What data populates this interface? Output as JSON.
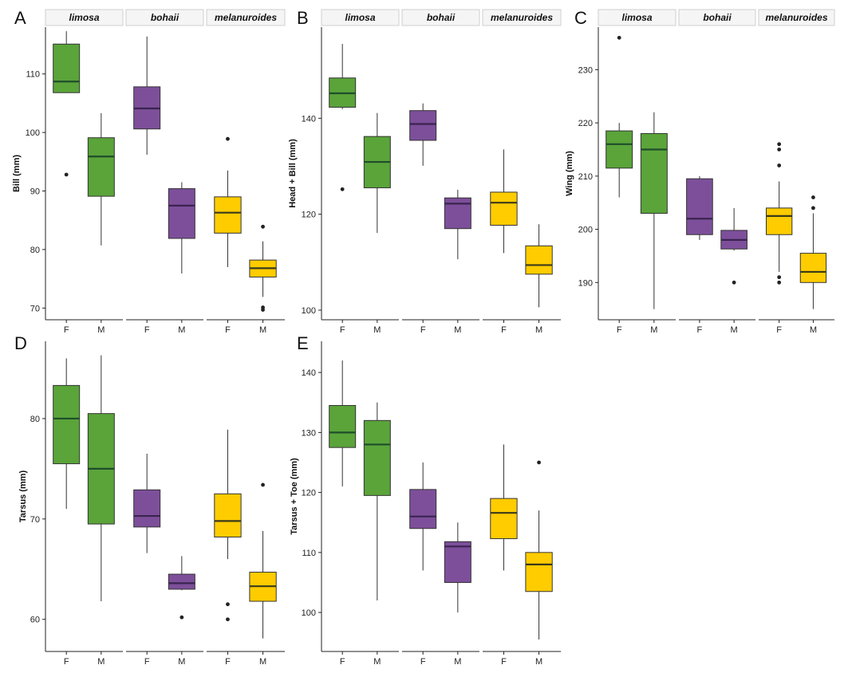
{
  "colors": {
    "limosa": "#5aa43a",
    "bohaii": "#7d4f9a",
    "melanuroides": "#ffcc00",
    "median_dark": "#1f4d2a",
    "median_purple": "#3a2450",
    "median_yellow": "#3a3a1a",
    "strip_fill": "#f5f5f5",
    "axis": "#222222"
  },
  "chart_data": [
    {
      "panel": "A",
      "type": "box",
      "ylabel": "Bill (mm)",
      "ylim": [
        68,
        118
      ],
      "yticks": [
        70,
        80,
        90,
        100,
        110
      ],
      "facets": [
        "limosa",
        "bohaii",
        "melanuroides"
      ],
      "categories": [
        "F",
        "M"
      ],
      "boxes": [
        {
          "facet": "limosa",
          "sex": "F",
          "q1": 106.8,
          "median": 108.7,
          "q3": 115.1,
          "whislo": 106.8,
          "whishi": 117.3,
          "outliers": [
            92.8
          ]
        },
        {
          "facet": "limosa",
          "sex": "M",
          "q1": 89.1,
          "median": 95.9,
          "q3": 99.1,
          "whislo": 80.7,
          "whishi": 103.3,
          "outliers": []
        },
        {
          "facet": "bohaii",
          "sex": "F",
          "q1": 100.6,
          "median": 104.1,
          "q3": 107.8,
          "whislo": 96.2,
          "whishi": 116.4,
          "outliers": []
        },
        {
          "facet": "bohaii",
          "sex": "M",
          "q1": 81.9,
          "median": 87.5,
          "q3": 90.4,
          "whislo": 75.9,
          "whishi": 91.5,
          "outliers": []
        },
        {
          "facet": "melanuroides",
          "sex": "F",
          "q1": 82.8,
          "median": 86.3,
          "q3": 89.0,
          "whislo": 77.0,
          "whishi": 93.5,
          "outliers": [
            98.9
          ]
        },
        {
          "facet": "melanuroides",
          "sex": "M",
          "q1": 75.3,
          "median": 76.8,
          "q3": 78.2,
          "whislo": 71.9,
          "whishi": 81.4,
          "outliers": [
            83.9,
            70.1,
            69.7
          ]
        }
      ]
    },
    {
      "panel": "B",
      "type": "box",
      "ylabel": "Head + Bill (mm)",
      "ylim": [
        98,
        159
      ],
      "yticks": [
        100,
        120,
        140
      ],
      "facets": [
        "limosa",
        "bohaii",
        "melanuroides"
      ],
      "categories": [
        "F",
        "M"
      ],
      "boxes": [
        {
          "facet": "limosa",
          "sex": "F",
          "q1": 142.3,
          "median": 145.2,
          "q3": 148.4,
          "whislo": 141.9,
          "whishi": 155.5,
          "outliers": [
            125.2
          ]
        },
        {
          "facet": "limosa",
          "sex": "M",
          "q1": 125.5,
          "median": 130.9,
          "q3": 136.2,
          "whislo": 116.1,
          "whishi": 141.1,
          "outliers": []
        },
        {
          "facet": "bohaii",
          "sex": "F",
          "q1": 135.4,
          "median": 138.8,
          "q3": 141.6,
          "whislo": 130.1,
          "whishi": 143.1,
          "outliers": []
        },
        {
          "facet": "bohaii",
          "sex": "M",
          "q1": 117.0,
          "median": 122.2,
          "q3": 123.4,
          "whislo": 110.6,
          "whishi": 125.1,
          "outliers": []
        },
        {
          "facet": "melanuroides",
          "sex": "F",
          "q1": 117.7,
          "median": 122.4,
          "q3": 124.6,
          "whislo": 111.9,
          "whishi": 133.5,
          "outliers": []
        },
        {
          "facet": "melanuroides",
          "sex": "M",
          "q1": 107.5,
          "median": 109.4,
          "q3": 113.4,
          "whislo": 100.6,
          "whishi": 117.9,
          "outliers": []
        }
      ]
    },
    {
      "panel": "C",
      "type": "box",
      "ylabel": "Wing (mm)",
      "ylim": [
        183,
        238
      ],
      "yticks": [
        190,
        200,
        210,
        220,
        230
      ],
      "facets": [
        "limosa",
        "bohaii",
        "melanuroides"
      ],
      "categories": [
        "F",
        "M"
      ],
      "boxes": [
        {
          "facet": "limosa",
          "sex": "F",
          "q1": 211.5,
          "median": 216.0,
          "q3": 218.5,
          "whislo": 206.0,
          "whishi": 220.0,
          "outliers": [
            236.0
          ]
        },
        {
          "facet": "limosa",
          "sex": "M",
          "q1": 203.0,
          "median": 215.0,
          "q3": 218.0,
          "whislo": 185.0,
          "whishi": 222.0,
          "outliers": []
        },
        {
          "facet": "bohaii",
          "sex": "F",
          "q1": 199.0,
          "median": 202.0,
          "q3": 209.5,
          "whislo": 198.0,
          "whishi": 210.0,
          "outliers": []
        },
        {
          "facet": "bohaii",
          "sex": "M",
          "q1": 196.3,
          "median": 198.0,
          "q3": 199.8,
          "whislo": 196.0,
          "whishi": 204.0,
          "outliers": [
            190.0
          ]
        },
        {
          "facet": "melanuroides",
          "sex": "F",
          "q1": 199.0,
          "median": 202.5,
          "q3": 204.0,
          "whislo": 192.0,
          "whishi": 209.0,
          "outliers": [
            216.0,
            215.0,
            212.0,
            191.0,
            190.0
          ]
        },
        {
          "facet": "melanuroides",
          "sex": "M",
          "q1": 190.0,
          "median": 192.0,
          "q3": 195.5,
          "whislo": 185.0,
          "whishi": 203.0,
          "outliers": [
            206.0,
            204.0
          ]
        }
      ]
    },
    {
      "panel": "D",
      "type": "box",
      "ylabel": "Tarsus (mm)",
      "ylim": [
        56.8,
        87.7
      ],
      "yticks": [
        60,
        70,
        80
      ],
      "facets": [
        "limosa",
        "bohaii",
        "melanuroides"
      ],
      "categories": [
        "F",
        "M"
      ],
      "boxes": [
        {
          "facet": "limosa",
          "sex": "F",
          "q1": 75.5,
          "median": 80.0,
          "q3": 83.3,
          "whislo": 71.0,
          "whishi": 86.0,
          "outliers": []
        },
        {
          "facet": "limosa",
          "sex": "M",
          "q1": 69.5,
          "median": 75.0,
          "q3": 80.5,
          "whislo": 61.8,
          "whishi": 86.3,
          "outliers": []
        },
        {
          "facet": "bohaii",
          "sex": "F",
          "q1": 69.2,
          "median": 70.3,
          "q3": 72.9,
          "whislo": 66.6,
          "whishi": 76.5,
          "outliers": []
        },
        {
          "facet": "bohaii",
          "sex": "M",
          "q1": 63.0,
          "median": 63.6,
          "q3": 64.5,
          "whislo": 62.9,
          "whishi": 66.3,
          "outliers": [
            60.2
          ]
        },
        {
          "facet": "melanuroides",
          "sex": "F",
          "q1": 68.2,
          "median": 69.8,
          "q3": 72.5,
          "whislo": 66.0,
          "whishi": 78.9,
          "outliers": [
            61.5,
            60.0
          ]
        },
        {
          "facet": "melanuroides",
          "sex": "M",
          "q1": 61.8,
          "median": 63.3,
          "q3": 64.7,
          "whislo": 58.1,
          "whishi": 68.8,
          "outliers": [
            73.4
          ]
        }
      ]
    },
    {
      "panel": "E",
      "type": "box",
      "ylabel": "Tarsus + Toe (mm)",
      "ylim": [
        93.5,
        145.2
      ],
      "yticks": [
        100,
        110,
        120,
        130,
        140
      ],
      "facets": [
        "limosa",
        "bohaii",
        "melanuroides"
      ],
      "categories": [
        "F",
        "M"
      ],
      "boxes": [
        {
          "facet": "limosa",
          "sex": "F",
          "q1": 127.5,
          "median": 130.0,
          "q3": 134.5,
          "whislo": 121.0,
          "whishi": 142.0,
          "outliers": []
        },
        {
          "facet": "limosa",
          "sex": "M",
          "q1": 119.5,
          "median": 128.0,
          "q3": 132.0,
          "whislo": 102.0,
          "whishi": 135.0,
          "outliers": []
        },
        {
          "facet": "bohaii",
          "sex": "F",
          "q1": 114.0,
          "median": 116.0,
          "q3": 120.5,
          "whislo": 107.0,
          "whishi": 125.0,
          "outliers": []
        },
        {
          "facet": "bohaii",
          "sex": "M",
          "q1": 105.0,
          "median": 111.0,
          "q3": 111.8,
          "whislo": 100.0,
          "whishi": 115.0,
          "outliers": []
        },
        {
          "facet": "melanuroides",
          "sex": "F",
          "q1": 112.3,
          "median": 116.6,
          "q3": 119.0,
          "whislo": 107.0,
          "whishi": 128.0,
          "outliers": []
        },
        {
          "facet": "melanuroides",
          "sex": "M",
          "q1": 103.5,
          "median": 108.0,
          "q3": 110.0,
          "whislo": 95.5,
          "whishi": 117.0,
          "outliers": [
            125.0
          ]
        }
      ]
    }
  ]
}
